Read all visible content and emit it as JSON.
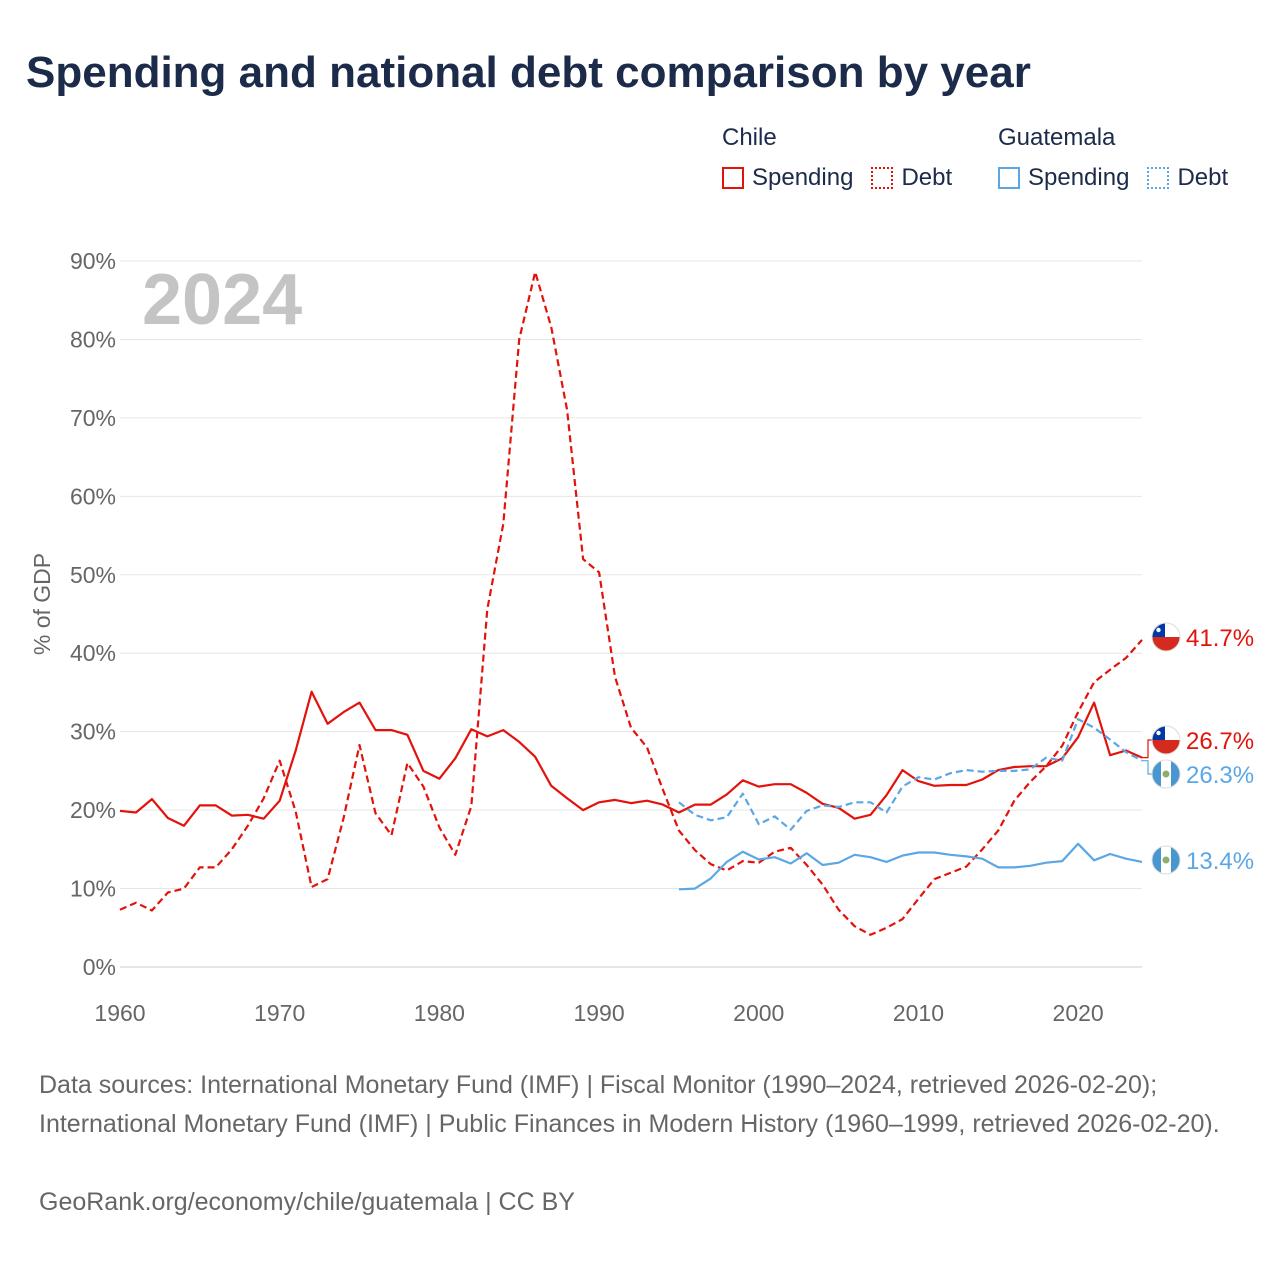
{
  "chart_data": {
    "type": "line",
    "title": "Spending and national debt comparison by year",
    "current_year_label": "2024",
    "ylabel": "% of GDP",
    "xlabel": "",
    "xlim": [
      1960,
      2024
    ],
    "ylim": [
      0,
      90
    ],
    "x_ticks": [
      1960,
      1970,
      1980,
      1990,
      2000,
      2010,
      2020
    ],
    "y_ticks": [
      0,
      10,
      20,
      30,
      40,
      50,
      60,
      70,
      80,
      90
    ],
    "y_tick_suffix": "%",
    "grid": true,
    "legend": {
      "placement": "top-right",
      "groups": [
        {
          "name": "Chile",
          "items": [
            "Spending",
            "Debt"
          ]
        },
        {
          "name": "Guatemala",
          "items": [
            "Spending",
            "Debt"
          ]
        }
      ]
    },
    "series": [
      {
        "name": "Chile Debt",
        "country": "Chile",
        "metric": "Debt",
        "style": "dashed",
        "color": "#e3120b",
        "end_label": "41.7%",
        "x": [
          1960,
          1961,
          1962,
          1963,
          1964,
          1965,
          1966,
          1967,
          1968,
          1969,
          1970,
          1971,
          1972,
          1973,
          1974,
          1975,
          1976,
          1977,
          1978,
          1979,
          1980,
          1981,
          1982,
          1983,
          1984,
          1985,
          1986,
          1987,
          1988,
          1989,
          1990,
          1991,
          1992,
          1993,
          1994,
          1995,
          1996,
          1997,
          1998,
          1999,
          2000,
          2001,
          2002,
          2003,
          2004,
          2005,
          2006,
          2007,
          2008,
          2009,
          2010,
          2011,
          2012,
          2013,
          2014,
          2015,
          2016,
          2017,
          2018,
          2019,
          2020,
          2021,
          2022,
          2023,
          2024
        ],
        "values": [
          7.3,
          8.2,
          7.2,
          9.5,
          10.0,
          12.7,
          12.7,
          15.0,
          18.0,
          21.5,
          26.3,
          19.8,
          10.2,
          11.2,
          19.0,
          28.3,
          19.6,
          16.8,
          26.0,
          23.0,
          17.8,
          14.3,
          20.5,
          45.6,
          56.5,
          80.0,
          88.6,
          81.6,
          71.0,
          52.0,
          50.3,
          37.0,
          30.5,
          28.0,
          22.6,
          17.4,
          14.9,
          13.1,
          12.3,
          13.5,
          13.3,
          14.7,
          15.2,
          13.0,
          10.5,
          7.3,
          5.2,
          4.1,
          5.0,
          6.1,
          8.7,
          11.2,
          12.0,
          12.8,
          15.0,
          17.4,
          21.2,
          23.6,
          25.6,
          28.2,
          32.5,
          36.3,
          37.9,
          39.4,
          41.7
        ]
      },
      {
        "name": "Chile Spending",
        "country": "Chile",
        "metric": "Spending",
        "style": "solid",
        "color": "#e3120b",
        "end_label": "26.7%",
        "x": [
          1960,
          1961,
          1962,
          1963,
          1964,
          1965,
          1966,
          1967,
          1968,
          1969,
          1970,
          1971,
          1972,
          1973,
          1974,
          1975,
          1976,
          1977,
          1978,
          1979,
          1980,
          1981,
          1982,
          1983,
          1984,
          1985,
          1986,
          1987,
          1988,
          1989,
          1990,
          1991,
          1992,
          1993,
          1994,
          1995,
          1996,
          1997,
          1998,
          1999,
          2000,
          2001,
          2002,
          2003,
          2004,
          2005,
          2006,
          2007,
          2008,
          2009,
          2010,
          2011,
          2012,
          2013,
          2014,
          2015,
          2016,
          2017,
          2018,
          2019,
          2020,
          2021,
          2022,
          2023,
          2024
        ],
        "values": [
          19.9,
          19.7,
          21.4,
          19.0,
          18.0,
          20.6,
          20.6,
          19.3,
          19.4,
          18.9,
          21.2,
          27.6,
          35.1,
          31.0,
          32.5,
          33.7,
          30.2,
          30.2,
          29.6,
          25.0,
          24.0,
          26.6,
          30.3,
          29.4,
          30.2,
          28.7,
          26.8,
          23.1,
          21.5,
          20.0,
          21.0,
          21.3,
          20.9,
          21.2,
          20.7,
          19.7,
          20.7,
          20.7,
          22.0,
          23.8,
          23.0,
          23.3,
          23.3,
          22.2,
          20.8,
          20.3,
          18.9,
          19.4,
          21.9,
          25.1,
          23.7,
          23.1,
          23.2,
          23.2,
          23.9,
          25.1,
          25.5,
          25.6,
          25.6,
          26.6,
          29.3,
          33.7,
          27.0,
          27.6,
          26.7
        ]
      },
      {
        "name": "Guatemala Debt",
        "country": "Guatemala",
        "metric": "Debt",
        "style": "dashed",
        "color": "#5ba7e6",
        "end_label": "26.3%",
        "x": [
          1995,
          1996,
          1997,
          1998,
          1999,
          2000,
          2001,
          2002,
          2003,
          2004,
          2005,
          2006,
          2007,
          2008,
          2009,
          2010,
          2011,
          2012,
          2013,
          2014,
          2015,
          2016,
          2017,
          2018,
          2019,
          2020,
          2021,
          2022,
          2023,
          2024
        ],
        "values": [
          21.0,
          19.4,
          18.7,
          19.1,
          22.1,
          18.2,
          19.2,
          17.5,
          19.9,
          20.6,
          20.4,
          21.0,
          21.0,
          19.7,
          23.0,
          24.2,
          23.9,
          24.7,
          25.1,
          24.9,
          25.0,
          25.0,
          25.2,
          26.7,
          26.3,
          31.6,
          30.5,
          29.0,
          27.4,
          26.3
        ]
      },
      {
        "name": "Guatemala Spending",
        "country": "Guatemala",
        "metric": "Spending",
        "style": "solid",
        "color": "#5ba7e6",
        "end_label": "13.4%",
        "x": [
          1995,
          1996,
          1997,
          1998,
          1999,
          2000,
          2001,
          2002,
          2003,
          2004,
          2005,
          2006,
          2007,
          2008,
          2009,
          2010,
          2011,
          2012,
          2013,
          2014,
          2015,
          2016,
          2017,
          2018,
          2019,
          2020,
          2021,
          2022,
          2023,
          2024
        ],
        "values": [
          9.9,
          10.0,
          11.3,
          13.4,
          14.7,
          13.7,
          14.0,
          13.2,
          14.5,
          13.0,
          13.3,
          14.3,
          14.0,
          13.4,
          14.2,
          14.6,
          14.6,
          14.3,
          14.1,
          13.8,
          12.7,
          12.7,
          12.9,
          13.3,
          13.5,
          15.7,
          13.6,
          14.4,
          13.8,
          13.4
        ]
      }
    ]
  },
  "legend": {
    "chile": {
      "title": "Chile",
      "spending": "Spending",
      "debt": "Debt"
    },
    "guatemala": {
      "title": "Guatemala",
      "spending": "Spending",
      "debt": "Debt"
    }
  },
  "footer": {
    "sources": "Data sources: International Monetary Fund (IMF) | Fiscal Monitor (1990–2024, retrieved 2026-02-20); International Monetary Fund (IMF) | Public Finances in Modern History (1960–1999, retrieved 2026-02-20).",
    "credit": "GeoRank.org/economy/chile/guatemala | CC BY"
  },
  "colors": {
    "chile": "#e3120b",
    "guatemala": "#5ba7e6",
    "title": "#1c2b4a",
    "muted": "#666666",
    "grid": "#e6e6e6"
  }
}
